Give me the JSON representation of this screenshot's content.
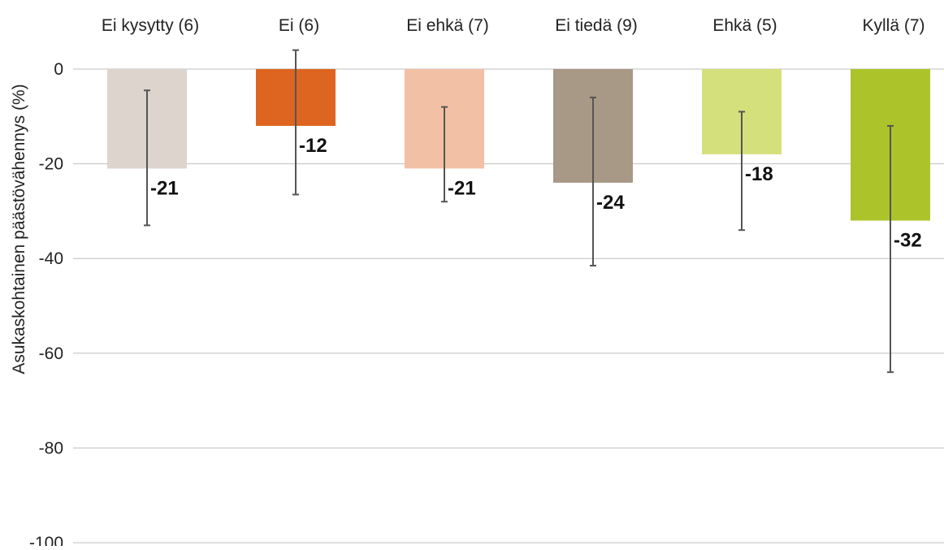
{
  "chart_data": {
    "type": "bar",
    "title": "",
    "xlabel": "",
    "ylabel": "Asukaskohtainen päästövähennys (%)",
    "ylim": [
      -100,
      0
    ],
    "yticks": [
      0,
      -20,
      -40,
      -60,
      -80,
      -100
    ],
    "grid": true,
    "legend": "none",
    "categories": [
      "Ei kysytty (6)",
      "Ei (6)",
      "Ei ehkä (7)",
      "Ei tiedä (9)",
      "Ehkä (5)",
      "Kyllä (7)"
    ],
    "values": [
      -21,
      -12,
      -21,
      -24,
      -18,
      -32
    ],
    "value_labels": [
      "-21",
      "-12",
      "-21",
      "-24",
      "-18",
      "-32"
    ],
    "error_low": [
      -33,
      -26.5,
      -28,
      -41.5,
      -34,
      -64
    ],
    "error_high": [
      -4.5,
      4,
      -8,
      -6,
      -9,
      -12
    ],
    "colors": [
      "#ddd5cd",
      "#dd6520",
      "#f2c0a4",
      "#a89886",
      "#d4e07c",
      "#acc42a"
    ],
    "gridline_color": "#bfbfbf",
    "errorbar_color": "#555555"
  }
}
